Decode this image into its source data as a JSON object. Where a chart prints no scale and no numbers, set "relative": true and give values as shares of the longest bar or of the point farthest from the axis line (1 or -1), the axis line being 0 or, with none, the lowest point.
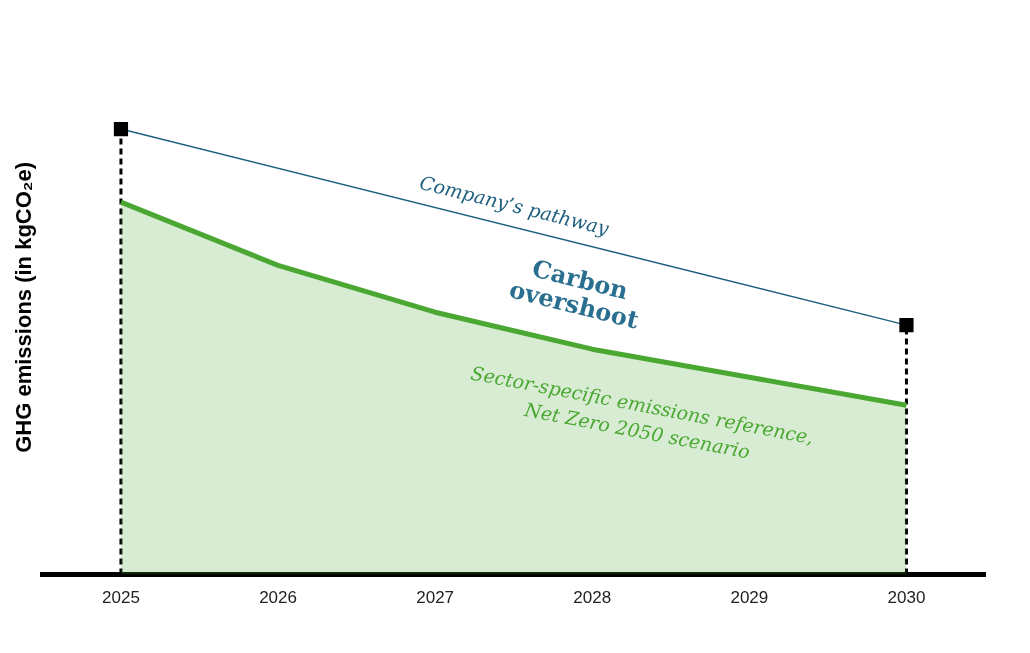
{
  "chart_data": {
    "type": "area",
    "relative": true,
    "ylabel": "GHG emissions (in kgCO₂e)",
    "x": [
      2025,
      2026,
      2027,
      2028,
      2029,
      2030
    ],
    "xlim": [
      2024.5,
      2030.5
    ],
    "xticks": [
      2025,
      2026,
      2027,
      2028,
      2029,
      2030
    ],
    "series": [
      {
        "name": "Company’s pathway",
        "type": "line",
        "color": "#1f5f7f",
        "x": [
          2025,
          2030
        ],
        "values": [
          1,
          0.56
        ],
        "marker": "square"
      },
      {
        "name": "Sector-specific emissions reference,\nNet Zero 2050 scenario",
        "color": "#4aa832",
        "values": [
          0.836,
          0.694,
          0.589,
          0.506,
          0.443,
          0.38
        ],
        "marker": "none"
      }
    ],
    "annotations": [
      "Carbon overshoot"
    ],
    "ref_lines": [
      {
        "axis": "x",
        "value": 2025,
        "color": "#000000",
        "line_style": "dashed"
      },
      {
        "axis": "x",
        "value": 2030,
        "color": "#000000",
        "line_style": "dashed"
      }
    ],
    "grid": false,
    "legend": false
  }
}
